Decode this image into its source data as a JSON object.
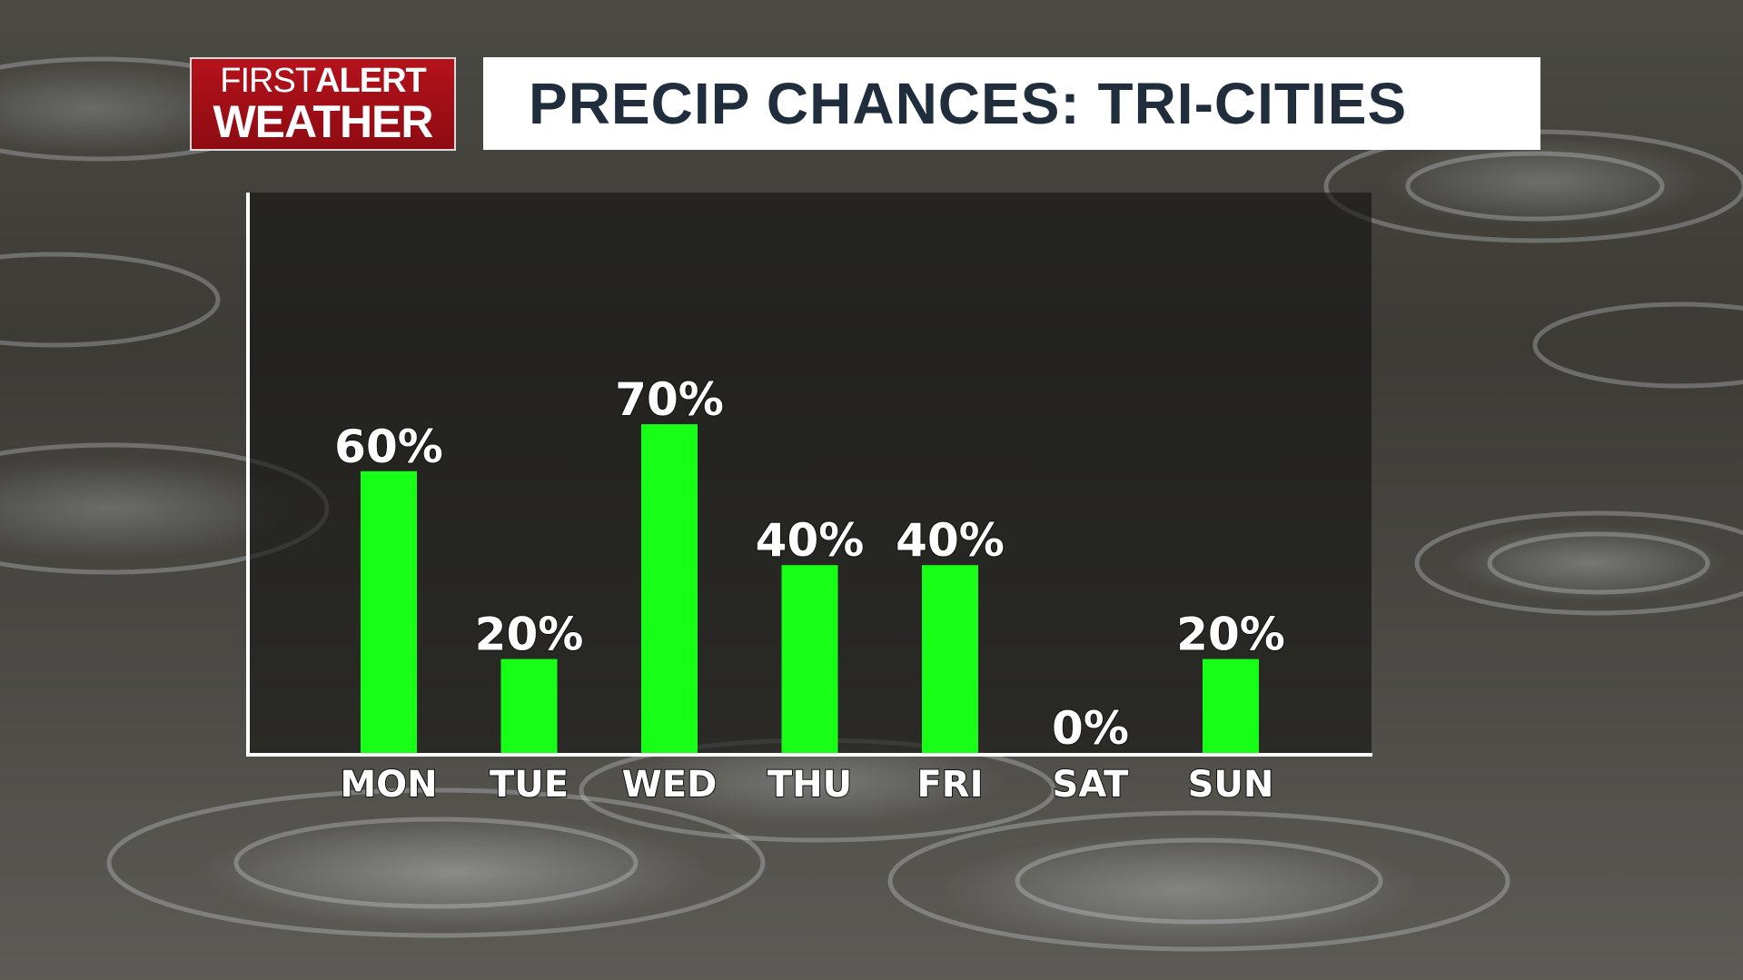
{
  "logo": {
    "line1_a": "FIRST",
    "line1_b": "ALERT",
    "line2": "WEATHER"
  },
  "title": "PRECIP CHANCES: TRI-CITIES",
  "colors": {
    "bar": "#17ff17",
    "logo_red": "#b5121b",
    "title_text": "#1f2d3d",
    "axis": "#ffffff"
  },
  "chart_data": {
    "type": "bar",
    "categories": [
      "MON",
      "TUE",
      "WED",
      "THU",
      "FRI",
      "SAT",
      "SUN"
    ],
    "values": [
      60,
      20,
      70,
      40,
      40,
      0,
      20
    ],
    "value_labels": [
      "60%",
      "20%",
      "70%",
      "40%",
      "40%",
      "0%",
      "20%"
    ],
    "ylim": [
      0,
      100
    ],
    "grid": false,
    "legend": "none"
  }
}
